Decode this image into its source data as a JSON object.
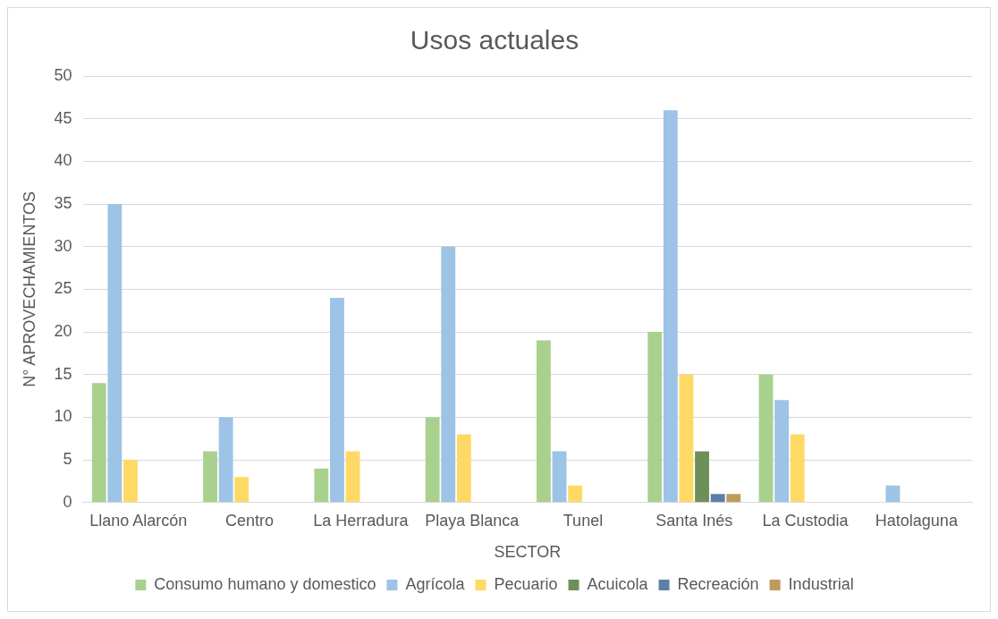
{
  "chart_data": {
    "type": "bar",
    "title": "Usos actuales",
    "xlabel": "SECTOR",
    "ylabel": "N° APROVECHAMIENTOS",
    "categories": [
      "Llano Alarcón",
      "Centro",
      "La Herradura",
      "Playa Blanca",
      "Tunel",
      "Santa Inés",
      "La Custodia",
      "Hatolaguna"
    ],
    "series": [
      {
        "name": "Consumo humano y domestico",
        "color": "#a9d18e",
        "values": [
          14,
          6,
          4,
          10,
          19,
          20,
          15,
          null
        ]
      },
      {
        "name": "Agrícola",
        "color": "#9dc3e6",
        "values": [
          35,
          10,
          24,
          30,
          6,
          46,
          12,
          2
        ]
      },
      {
        "name": "Pecuario",
        "color": "#ffd966",
        "values": [
          5,
          3,
          6,
          8,
          2,
          15,
          8,
          null
        ]
      },
      {
        "name": "Acuicola",
        "color": "#6f8f5a",
        "values": [
          null,
          null,
          null,
          null,
          null,
          6,
          null,
          null
        ]
      },
      {
        "name": "Recreación",
        "color": "#5b7fa8",
        "values": [
          null,
          null,
          null,
          null,
          null,
          1,
          null,
          null
        ]
      },
      {
        "name": "Industrial",
        "color": "#bf9b5a",
        "values": [
          null,
          null,
          null,
          null,
          null,
          1,
          null,
          null
        ]
      }
    ],
    "ylim": [
      0,
      50
    ],
    "yticks": [
      0,
      5,
      10,
      15,
      20,
      25,
      30,
      35,
      40,
      45,
      50
    ],
    "grid": "y",
    "legend": "bottom"
  }
}
